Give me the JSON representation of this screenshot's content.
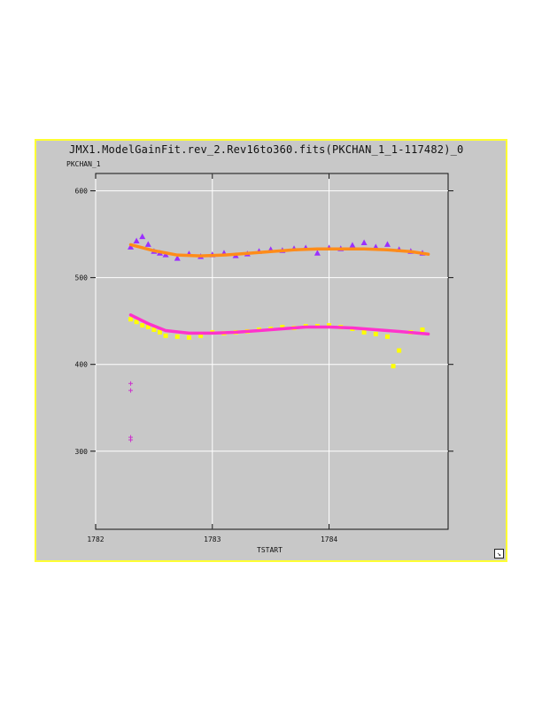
{
  "window": {
    "title": "JMX1.ModelGainFit.rev_2.Rev16to360.fits(PKCHAN_1_1-117482)_0",
    "resize_icon": "resize-arrow-icon"
  },
  "colors": {
    "panel_bg": "#c8c8c8",
    "border": "#ffff33",
    "upper_points": "#9b30ff",
    "upper_fit": "#ff8c1a",
    "lower_points": "#ffff00",
    "lower_fit": "#ff33cc",
    "grid": "#ffffff"
  },
  "chart_data": {
    "type": "scatter",
    "title": "JMX1.ModelGainFit.rev_2.Rev16to360.fits(PKCHAN_1_1-117482)_0",
    "xlabel": "TSTART",
    "ylabel": "PKCHAN_1",
    "xlim": [
      1782,
      1785.02
    ],
    "ylim": [
      210,
      620
    ],
    "xticks": [
      1782,
      1783,
      1784
    ],
    "yticks": [
      300,
      400,
      500,
      600
    ],
    "grid": true,
    "series": [
      {
        "marker": "triangle",
        "color": "#9b30ff",
        "x": [
          1782.3,
          1782.35,
          1782.4,
          1782.45,
          1782.5,
          1782.55,
          1782.6,
          1782.7,
          1782.8,
          1782.9,
          1783.0,
          1783.1,
          1783.2,
          1783.3,
          1783.4,
          1783.5,
          1783.6,
          1783.7,
          1783.8,
          1783.9,
          1784.0,
          1784.1,
          1784.2,
          1784.3,
          1784.4,
          1784.5,
          1784.6,
          1784.7,
          1784.8
        ],
        "y": [
          535,
          542,
          547,
          538,
          530,
          528,
          526,
          522,
          527,
          524,
          526,
          528,
          525,
          527,
          530,
          532,
          531,
          533,
          534,
          528,
          534,
          533,
          537,
          540,
          535,
          538,
          532,
          530,
          528
        ]
      },
      {
        "marker": "line",
        "color": "#ff8c1a",
        "x": [
          1782.3,
          1782.5,
          1782.7,
          1782.9,
          1783.1,
          1783.3,
          1783.5,
          1783.7,
          1783.9,
          1784.1,
          1784.3,
          1784.5,
          1784.7,
          1784.85
        ],
        "y": [
          538,
          531,
          526,
          525,
          526,
          528,
          530,
          532,
          533,
          533,
          533,
          532,
          530,
          527
        ]
      },
      {
        "marker": "square",
        "color": "#ffff00",
        "x": [
          1782.3,
          1782.35,
          1782.4,
          1782.45,
          1782.5,
          1782.55,
          1782.6,
          1782.7,
          1782.8,
          1782.9,
          1783.0,
          1783.1,
          1783.2,
          1783.3,
          1783.4,
          1783.5,
          1783.6,
          1783.7,
          1783.8,
          1783.9,
          1784.0,
          1784.1,
          1784.2,
          1784.3,
          1784.4,
          1784.5,
          1784.55,
          1784.6,
          1784.7,
          1784.8
        ],
        "y": [
          452,
          449,
          445,
          443,
          440,
          437,
          433,
          432,
          431,
          433,
          437,
          436,
          437,
          438,
          440,
          441,
          443,
          442,
          444,
          444,
          445,
          443,
          441,
          437,
          435,
          432,
          398,
          416,
          437,
          440
        ]
      },
      {
        "marker": "line",
        "color": "#ff33cc",
        "x": [
          1782.3,
          1782.45,
          1782.6,
          1782.8,
          1783.0,
          1783.2,
          1783.4,
          1783.6,
          1783.8,
          1784.0,
          1784.2,
          1784.4,
          1784.6,
          1784.85
        ],
        "y": [
          457,
          447,
          439,
          436,
          436,
          437,
          439,
          441,
          443,
          443,
          442,
          440,
          438,
          435
        ]
      },
      {
        "marker": "plus",
        "color": "#cc33cc",
        "x": [
          1782.3,
          1782.3,
          1782.3,
          1782.3
        ],
        "y": [
          378,
          370,
          316,
          313
        ]
      }
    ]
  }
}
